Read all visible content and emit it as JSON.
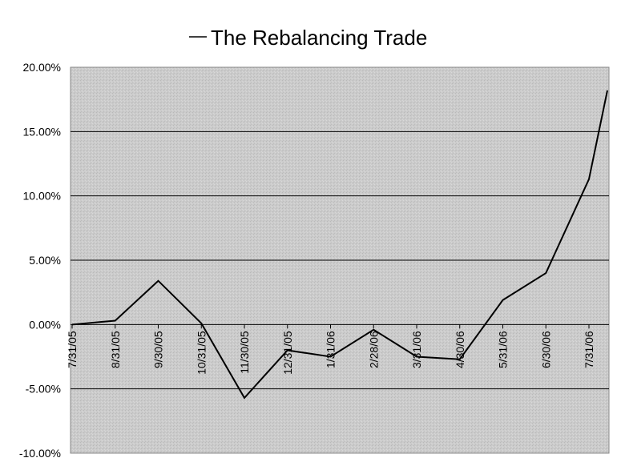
{
  "chart_data": {
    "type": "line",
    "title": "",
    "xlabel": "",
    "ylabel": "",
    "categories": [
      "7/31/05",
      "8/31/05",
      "9/30/05",
      "10/31/05",
      "11/30/05",
      "12/31/05",
      "1/31/06",
      "2/28/06",
      "3/31/06",
      "4/30/06",
      "5/31/06",
      "6/30/06",
      "7/31/06"
    ],
    "series": [
      {
        "name": "The Rebalancing Trade",
        "values": [
          0.0,
          0.3,
          3.4,
          0.1,
          -5.7,
          -2.0,
          -2.5,
          -0.4,
          -2.5,
          -2.7,
          1.9,
          4.0,
          11.3
        ],
        "final_point": 18.2,
        "color": "#000000"
      }
    ],
    "ylim": [
      -10,
      20
    ],
    "y_ticks": [
      "20.00%",
      "15.00%",
      "10.00%",
      "5.00%",
      "0.00%",
      "-5.00%",
      "-10.00%"
    ],
    "grid": true,
    "plot_background": "#c8c8c8",
    "legend_position": "top"
  }
}
